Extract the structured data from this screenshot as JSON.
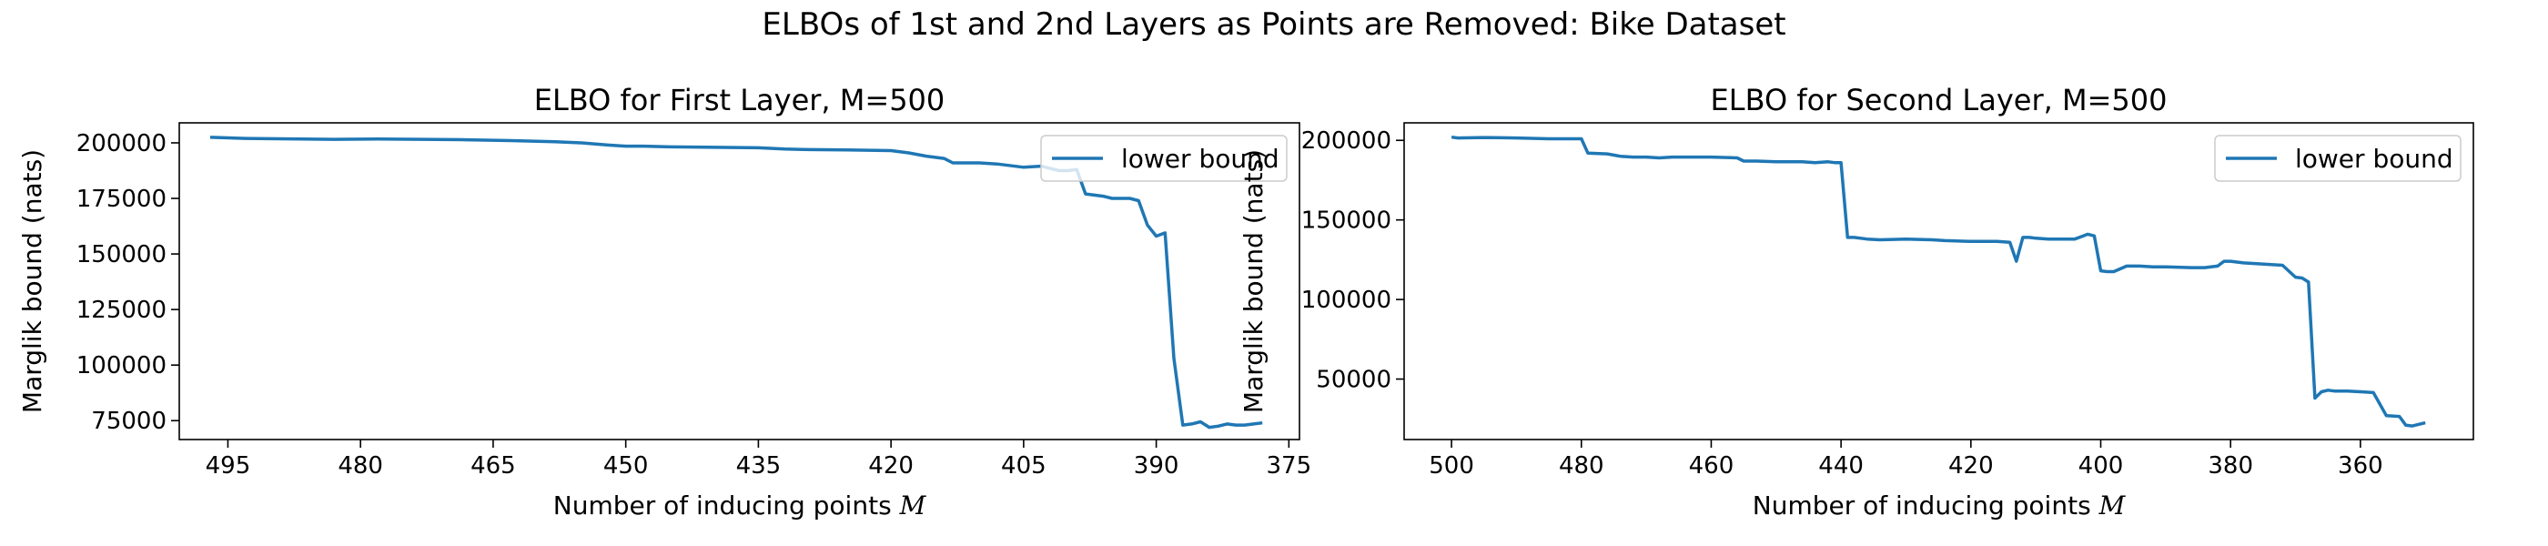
{
  "figure": {
    "suptitle": "ELBOs of 1st and 2nd Layers as Points are Removed: Bike Dataset"
  },
  "colors": {
    "line": "#1f77b4",
    "axes": "#000000",
    "legend_border": "#cccccc"
  },
  "chart_data": [
    {
      "type": "line",
      "title": "ELBO for First Layer, M=500",
      "xlabel": "Number of inducing points M",
      "ylabel": "Marglik bound (nats)",
      "x_inverted": true,
      "xlim": [
        500.5,
        373.8
      ],
      "ylim": [
        66500,
        209000
      ],
      "xticks": [
        495,
        480,
        465,
        450,
        435,
        420,
        405,
        390,
        375
      ],
      "yticks": [
        75000,
        100000,
        125000,
        150000,
        175000,
        200000
      ],
      "legend_position": "top-right",
      "series": [
        {
          "name": "lower bound",
          "x": [
            497,
            493,
            488,
            483,
            478,
            473,
            468,
            463,
            458,
            455,
            452,
            450,
            448,
            445,
            440,
            435,
            432,
            430,
            425,
            420,
            418,
            416,
            414,
            413,
            410,
            408,
            405,
            403,
            401,
            400,
            399,
            398,
            396,
            395,
            393,
            392,
            391,
            390,
            389,
            388,
            387,
            386,
            385,
            384,
            383,
            382,
            381,
            380,
            379,
            378
          ],
          "y": [
            202500,
            202000,
            201800,
            201600,
            201700,
            201600,
            201400,
            201000,
            200500,
            200000,
            199000,
            198500,
            198500,
            198200,
            198000,
            197800,
            197200,
            197000,
            196800,
            196500,
            195500,
            194000,
            193000,
            191000,
            191000,
            190500,
            189000,
            189500,
            187500,
            187500,
            188000,
            177000,
            176000,
            175000,
            175000,
            174000,
            163000,
            158000,
            159500,
            103000,
            73000,
            73500,
            74500,
            72000,
            72500,
            73500,
            73000,
            73000,
            73500,
            74000
          ]
        }
      ]
    },
    {
      "type": "line",
      "title": "ELBO for Second Layer,  M=500",
      "xlabel": "Number of inducing points M",
      "ylabel": "Marglik bound (nats)",
      "x_inverted": true,
      "xlim": [
        507.3,
        342.6
      ],
      "ylim": [
        12000,
        211000
      ],
      "xticks": [
        500,
        480,
        460,
        440,
        420,
        400,
        380,
        360
      ],
      "yticks": [
        50000,
        100000,
        150000,
        200000
      ],
      "legend_position": "top-right",
      "series": [
        {
          "name": "lower bound",
          "x": [
            500,
            499,
            495,
            490,
            485,
            480,
            479,
            476,
            474,
            472,
            470,
            468,
            466,
            465,
            460,
            456,
            455,
            453,
            450,
            446,
            444,
            442,
            441,
            440,
            439,
            438,
            436,
            434,
            430,
            426,
            424,
            420,
            416,
            414,
            413,
            412,
            411,
            410,
            408,
            406,
            404,
            402,
            401,
            400,
            399,
            398,
            396,
            394,
            392,
            390,
            386,
            384,
            382,
            381,
            380,
            379,
            378,
            376,
            374,
            372,
            370,
            369,
            368,
            367,
            366,
            365,
            364,
            362,
            360,
            358,
            356,
            354,
            353,
            352,
            350
          ],
          "y": [
            202000,
            201500,
            201800,
            201500,
            201000,
            201000,
            192000,
            191500,
            190000,
            189500,
            189500,
            189000,
            189500,
            189500,
            189500,
            189000,
            187000,
            187000,
            186500,
            186500,
            186000,
            186500,
            186000,
            186000,
            139000,
            139000,
            138000,
            137500,
            138000,
            137500,
            137000,
            136500,
            136500,
            136000,
            124000,
            139000,
            139000,
            138500,
            138000,
            138000,
            138000,
            141000,
            140000,
            118000,
            117500,
            117500,
            121000,
            121000,
            120500,
            120500,
            120000,
            120000,
            121000,
            124000,
            124000,
            123500,
            123000,
            122500,
            122000,
            121500,
            114000,
            113500,
            111000,
            38000,
            42000,
            43000,
            42500,
            42500,
            42000,
            41500,
            27000,
            26500,
            21000,
            20500,
            22500
          ]
        }
      ]
    }
  ]
}
